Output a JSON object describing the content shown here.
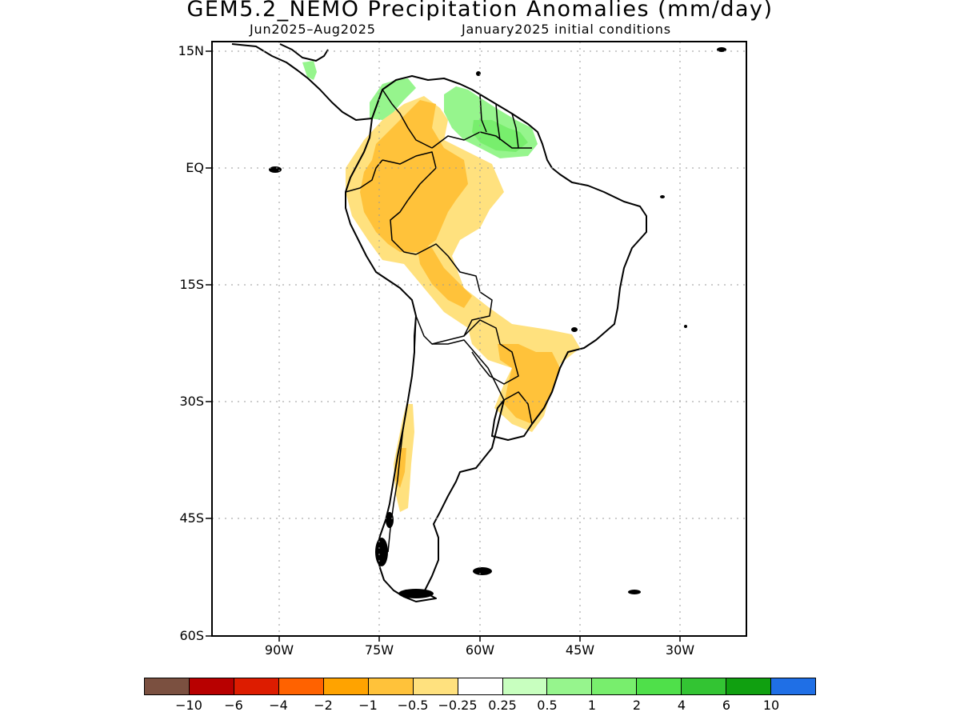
{
  "title": "GEM5.2_NEMO Precipitation Anomalies (mm/day)",
  "period": "Jun2025–Aug2025",
  "init": "January2025 initial conditions",
  "lat_labels": [
    "15N",
    "EQ",
    "15S",
    "30S",
    "45S",
    "60S"
  ],
  "lon_labels": [
    "90W",
    "75W",
    "60W",
    "45W",
    "30W"
  ],
  "map": {
    "extent": {
      "lon": [
        -100,
        -20
      ],
      "lat": [
        -60,
        15
      ]
    },
    "grid": "dotted",
    "lat_ticks": [
      15,
      0,
      -15,
      -30,
      -45,
      -60
    ],
    "lon_ticks": [
      -90,
      -75,
      -60,
      -45,
      -30
    ]
  },
  "colorbar": {
    "colors": [
      "#7b5040",
      "#b80000",
      "#dd1c00",
      "#ff6200",
      "#ffa300",
      "#ffc23a",
      "#ffe17e",
      "#ffffff",
      "#c8ffbf",
      "#96f58d",
      "#78ee6d",
      "#4fe04a",
      "#33c433",
      "#10a010",
      "#1f6fe6"
    ],
    "labels": [
      "−10",
      "−6",
      "−4",
      "−2",
      "−1",
      "−0.5",
      "−0.25",
      "0.25",
      "0.5",
      "1",
      "2",
      "4",
      "6",
      "10"
    ],
    "unit": "mm/day"
  },
  "anomaly_regions": [
    {
      "region": "Colombia / Venezuela Andes (north)",
      "value": "0.5 to 1",
      "color": "#96f58d"
    },
    {
      "region": "Guianas",
      "value": "0.5 to 1",
      "color": "#96f58d"
    },
    {
      "region": "Guianas core",
      "value": "1 to 2",
      "color": "#78ee6d"
    },
    {
      "region": "Western Amazon",
      "value": "-1 to -0.5",
      "color": "#ffc23a"
    },
    {
      "region": "Amazon basin margin",
      "value": "-0.5 to -0.25",
      "color": "#ffe17e"
    },
    {
      "region": "Southern Brazil",
      "value": "-1 to -0.5",
      "color": "#ffc23a"
    },
    {
      "region": "Central Chile",
      "value": "-0.5 to -0.25",
      "color": "#ffe17e"
    }
  ]
}
